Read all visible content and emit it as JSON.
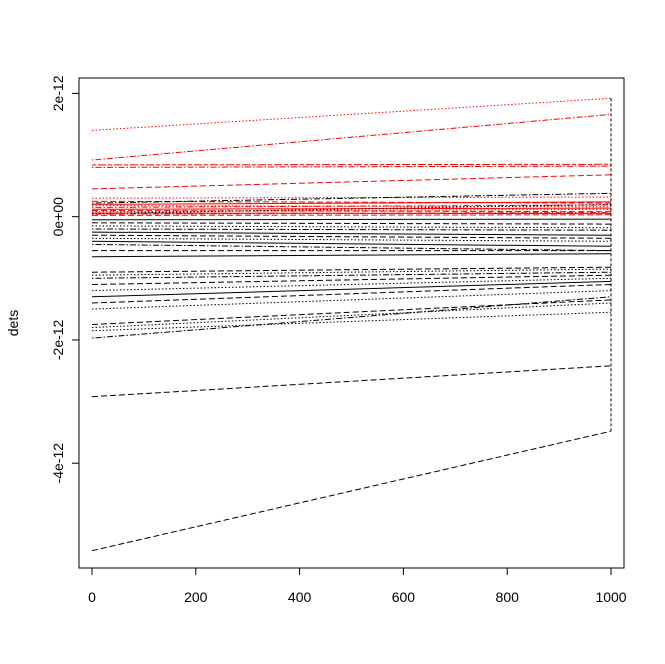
{
  "chart_data": {
    "type": "line",
    "title": "",
    "xlabel": "",
    "ylabel": "dets",
    "xlim": [
      -25,
      1025
    ],
    "ylim": [
      -5.7e-12,
      2.25e-12
    ],
    "x_ticks": [
      0,
      200,
      400,
      600,
      800,
      1000
    ],
    "x_tick_labels": [
      "0",
      "200",
      "400",
      "600",
      "800",
      "1000"
    ],
    "y_ticks": [
      -4e-12,
      -2e-12,
      0,
      2e-12
    ],
    "y_tick_labels": [
      "-4e-12",
      "-2e-12",
      "0e+00",
      "2e-12"
    ],
    "grid": false,
    "colors": {
      "positive": "#ff0000",
      "negative": "#000000"
    },
    "x": [
      0,
      1000
    ],
    "series": [
      {
        "values": [
          1.4e-12,
          1.92e-12
        ],
        "color": "#ff0000",
        "dash": "dotted"
      },
      {
        "values": [
          9.2e-13,
          1.66e-12
        ],
        "color": "#ff0000",
        "dash": "dashdot"
      },
      {
        "values": [
          8.4e-13,
          8.5e-13
        ],
        "color": "#ff0000",
        "dash": "twodash"
      },
      {
        "values": [
          8e-13,
          8.2e-13
        ],
        "color": "#ff0000",
        "dash": "dashdot"
      },
      {
        "values": [
          4.5e-13,
          6.8e-13
        ],
        "color": "#ff0000",
        "dash": "dashed"
      },
      {
        "values": [
          3e-13,
          3.2e-13
        ],
        "color": "#ff0000",
        "dash": "dotted"
      },
      {
        "values": [
          2.5e-13,
          2.2e-13
        ],
        "color": "#ff0000",
        "dash": "dashed"
      },
      {
        "values": [
          2e-13,
          2.4e-13
        ],
        "color": "#ff0000",
        "dash": "solid"
      },
      {
        "values": [
          1.8e-13,
          1.6e-13
        ],
        "color": "#ff0000",
        "dash": "dotted"
      },
      {
        "values": [
          1.5e-13,
          1.9e-13
        ],
        "color": "#ff0000",
        "dash": "dashdot"
      },
      {
        "values": [
          1.2e-13,
          1.4e-13
        ],
        "color": "#ff0000",
        "dash": "solid"
      },
      {
        "values": [
          1e-13,
          8e-14
        ],
        "color": "#ff0000",
        "dash": "dashed"
      },
      {
        "values": [
          8e-14,
          1.2e-13
        ],
        "color": "#ff0000",
        "dash": "dotted"
      },
      {
        "values": [
          6e-14,
          5e-14
        ],
        "color": "#ff0000",
        "dash": "solid"
      },
      {
        "values": [
          4e-14,
          7e-14
        ],
        "color": "#ff0000",
        "dash": "dashdot"
      },
      {
        "values": [
          2e-14,
          3e-14
        ],
        "color": "#ff0000",
        "dash": "dashed"
      },
      {
        "values": [
          2.2e-13,
          3.8e-13
        ],
        "color": "#000000",
        "dash": "dashdot"
      },
      {
        "values": [
          5e-14,
          2e-13
        ],
        "color": "#000000",
        "dash": "dotted"
      },
      {
        "values": [
          -5e-14,
          -4e-14
        ],
        "color": "#000000",
        "dash": "solid"
      },
      {
        "values": [
          -1e-13,
          -1.2e-13
        ],
        "color": "#000000",
        "dash": "dashed"
      },
      {
        "values": [
          -1.5e-13,
          -1.8e-13
        ],
        "color": "#000000",
        "dash": "dotted"
      },
      {
        "values": [
          -2e-13,
          -2.2e-13
        ],
        "color": "#000000",
        "dash": "dashdot"
      },
      {
        "values": [
          -2.5e-13,
          -3e-13
        ],
        "color": "#000000",
        "dash": "solid"
      },
      {
        "values": [
          -3e-13,
          -3.5e-13
        ],
        "color": "#000000",
        "dash": "dashed"
      },
      {
        "values": [
          -3.5e-13,
          -4e-13
        ],
        "color": "#000000",
        "dash": "dotted"
      },
      {
        "values": [
          -4e-13,
          -4.8e-13
        ],
        "color": "#000000",
        "dash": "solid"
      },
      {
        "values": [
          -4.5e-13,
          -5.5e-13
        ],
        "color": "#000000",
        "dash": "dashdot"
      },
      {
        "values": [
          -5.5e-13,
          -5.5e-13
        ],
        "color": "#000000",
        "dash": "dashed"
      },
      {
        "values": [
          -6.5e-13,
          -6e-13
        ],
        "color": "#000000",
        "dash": "solid"
      },
      {
        "values": [
          -9e-13,
          -8.2e-13
        ],
        "color": "#000000",
        "dash": "dashed"
      },
      {
        "values": [
          -9.5e-13,
          -8.5e-13
        ],
        "color": "#000000",
        "dash": "dotted"
      },
      {
        "values": [
          -1e-12,
          -9e-13
        ],
        "color": "#000000",
        "dash": "dashdot"
      },
      {
        "values": [
          -1.1e-12,
          -9.5e-13
        ],
        "color": "#000000",
        "dash": "dashed"
      },
      {
        "values": [
          -1.2e-12,
          -1e-12
        ],
        "color": "#000000",
        "dash": "dotted"
      },
      {
        "values": [
          -1.3e-12,
          -1.05e-12
        ],
        "color": "#000000",
        "dash": "solid"
      },
      {
        "values": [
          -1.4e-12,
          -1.1e-12
        ],
        "color": "#000000",
        "dash": "dashed"
      },
      {
        "values": [
          -1.5e-12,
          -1.2e-12
        ],
        "color": "#000000",
        "dash": "dotted"
      },
      {
        "values": [
          -1.75e-12,
          -1.35e-12
        ],
        "color": "#000000",
        "dash": "dashed"
      },
      {
        "values": [
          -1.8e-12,
          -1.4e-12
        ],
        "color": "#000000",
        "dash": "dotted"
      },
      {
        "values": [
          -1.85e-12,
          -1.55e-12
        ],
        "color": "#000000",
        "dash": "dotted"
      },
      {
        "values": [
          -1.97e-12,
          -1.3e-12
        ],
        "color": "#000000",
        "dash": "dashdot"
      },
      {
        "values": [
          -2.92e-12,
          -2.42e-12
        ],
        "color": "#000000",
        "dash": "dashed"
      },
      {
        "values": [
          -5.42e-12,
          -3.48e-12
        ],
        "color": "#000000",
        "dash": "dashed"
      }
    ]
  }
}
